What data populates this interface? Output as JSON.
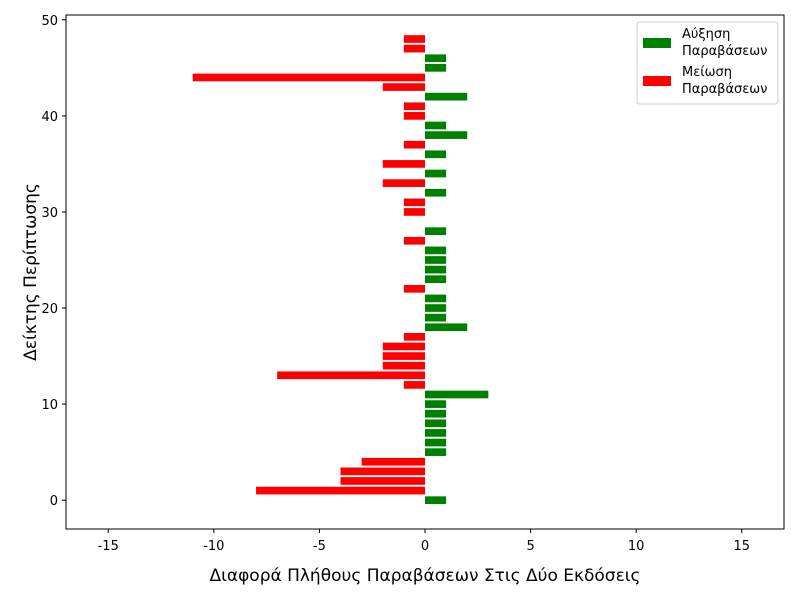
{
  "chart_data": {
    "type": "bar",
    "orientation": "horizontal",
    "xlabel": "Διαφορά Πλήθους Παραβάσεων Στις Δύο Εκδόσεις",
    "ylabel": "Δείκτης Περίπτωσης",
    "xlim": [
      -17,
      17
    ],
    "ylim": [
      -3,
      50.5
    ],
    "xticks": [
      -15,
      -10,
      -5,
      0,
      5,
      10,
      15
    ],
    "yticks": [
      0,
      10,
      20,
      30,
      40,
      50
    ],
    "legend_position": "top-right",
    "legend": [
      {
        "lines": [
          "Αύξηση",
          "Παραβάσεων"
        ],
        "color": "#008000"
      },
      {
        "lines": [
          "Μείωση",
          "Παραβάσεων"
        ],
        "color": "#ff0000"
      }
    ],
    "positive_color": "#008000",
    "negative_color": "#ff0000",
    "y": [
      0,
      1,
      2,
      3,
      4,
      5,
      6,
      7,
      8,
      9,
      10,
      11,
      12,
      13,
      14,
      15,
      16,
      17,
      18,
      19,
      20,
      21,
      22,
      23,
      24,
      25,
      26,
      27,
      28,
      29,
      30,
      31,
      32,
      33,
      34,
      35,
      36,
      37,
      38,
      39,
      40,
      41,
      42,
      43,
      44,
      45,
      46,
      47,
      48
    ],
    "values": [
      1,
      -8,
      -4,
      -4,
      -3,
      1,
      1,
      1,
      1,
      1,
      1,
      3,
      -1,
      -7,
      -2,
      -2,
      -2,
      -1,
      2,
      1,
      1,
      1,
      -1,
      1,
      1,
      1,
      1,
      -1,
      1,
      0,
      -1,
      -1,
      1,
      -2,
      1,
      -2,
      1,
      -1,
      2,
      1,
      -1,
      -1,
      2,
      -2,
      -11,
      1,
      1,
      -1,
      -1
    ]
  }
}
